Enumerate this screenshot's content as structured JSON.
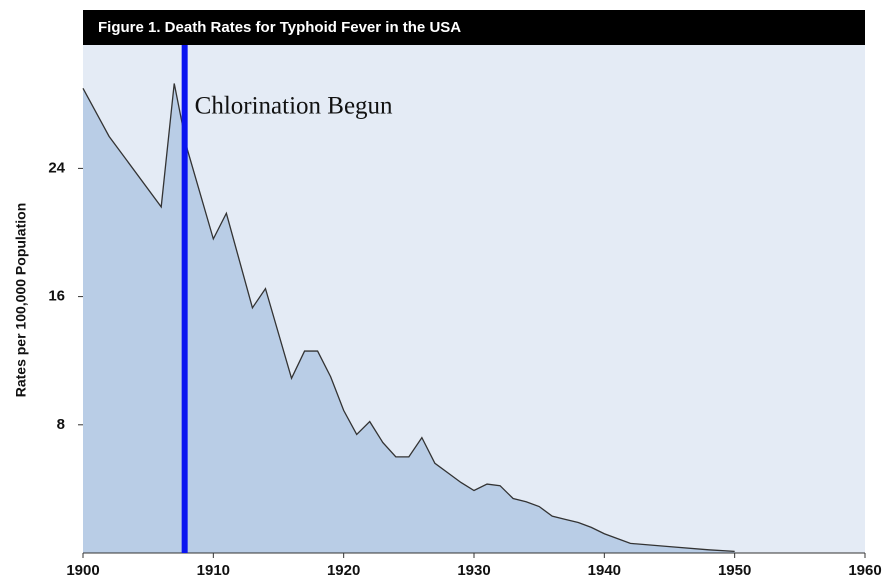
{
  "chart_data": {
    "type": "area",
    "title": "Figure 1.  Death Rates for Typhoid Fever in the USA",
    "y_label": "Rates per 100,000 Population",
    "annotation": {
      "text": "Chlorination Begun",
      "x": 1907.8,
      "color": "#0a14f0"
    },
    "x": [
      1900,
      1902,
      1906,
      1907,
      1908,
      1910,
      1911,
      1913,
      1914,
      1916,
      1917,
      1918,
      1919,
      1920,
      1921,
      1922,
      1923,
      1924,
      1925,
      1926,
      1927,
      1928,
      1929,
      1930,
      1931,
      1932,
      1933,
      1934,
      1935,
      1936,
      1937,
      1938,
      1939,
      1940,
      1942,
      1945,
      1948,
      1950
    ],
    "values": [
      29.0,
      26.0,
      21.6,
      29.3,
      25.2,
      19.6,
      21.2,
      15.3,
      16.5,
      10.9,
      12.6,
      12.6,
      11.0,
      8.9,
      7.4,
      8.2,
      6.9,
      6.0,
      6.0,
      7.2,
      5.6,
      5.0,
      4.4,
      3.9,
      4.3,
      4.2,
      3.4,
      3.2,
      2.9,
      2.3,
      2.1,
      1.9,
      1.6,
      1.2,
      0.6,
      0.4,
      0.2,
      0.1
    ],
    "color": "#b9cde6",
    "line_color": "#333333",
    "background": "#e4ebf5",
    "xlim": [
      1900,
      1960
    ],
    "xticks": [
      1900,
      1910,
      1920,
      1930,
      1940,
      1950,
      1960
    ],
    "ylim": [
      0,
      31.7
    ],
    "yticks": [
      8,
      16,
      24
    ]
  }
}
